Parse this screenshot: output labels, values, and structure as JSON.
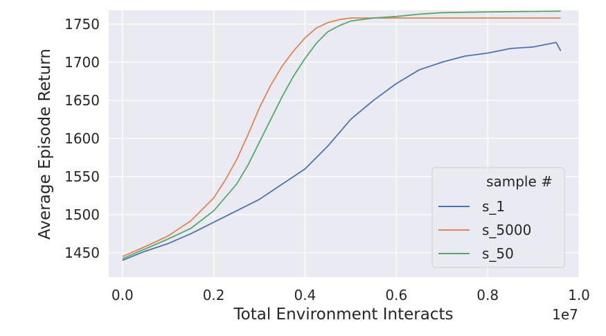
{
  "chart_data": {
    "type": "line",
    "title": "",
    "xlabel": "Total Environment Interacts",
    "ylabel": "Average Episode Return",
    "x_offset_label": "1e7",
    "xlim": [
      -0.03,
      1.0
    ],
    "ylim": [
      1418,
      1768
    ],
    "x_ticks": [
      0.0,
      0.2,
      0.4,
      0.6,
      0.8,
      1.0
    ],
    "x_tick_labels": [
      "0.0",
      "0.2",
      "0.4",
      "0.6",
      "0.8",
      "1.0"
    ],
    "y_ticks": [
      1450,
      1500,
      1550,
      1600,
      1650,
      1700,
      1750
    ],
    "y_tick_labels": [
      "1450",
      "1500",
      "1550",
      "1600",
      "1650",
      "1700",
      "1750"
    ],
    "grid": true,
    "legend": {
      "title": "sample #",
      "placement": "lower-right"
    },
    "series": [
      {
        "name": "s_1",
        "color": "#4c72b0",
        "x": [
          0.0,
          0.05,
          0.1,
          0.15,
          0.2,
          0.25,
          0.3,
          0.35,
          0.4,
          0.45,
          0.5,
          0.55,
          0.6,
          0.65,
          0.7,
          0.75,
          0.8,
          0.85,
          0.9,
          0.95,
          0.96
        ],
        "y": [
          1440,
          1452,
          1462,
          1475,
          1490,
          1505,
          1520,
          1540,
          1560,
          1590,
          1625,
          1650,
          1672,
          1690,
          1700,
          1708,
          1712,
          1718,
          1720,
          1726,
          1715
        ]
      },
      {
        "name": "s_5000",
        "color": "#dd8452",
        "x": [
          0.0,
          0.05,
          0.1,
          0.15,
          0.2,
          0.225,
          0.25,
          0.275,
          0.3,
          0.325,
          0.35,
          0.375,
          0.4,
          0.425,
          0.45,
          0.475,
          0.5,
          0.525,
          0.55,
          0.6,
          0.7,
          0.8,
          0.96
        ],
        "y": [
          1445,
          1458,
          1472,
          1492,
          1522,
          1545,
          1572,
          1605,
          1640,
          1670,
          1695,
          1715,
          1732,
          1745,
          1752,
          1756,
          1758,
          1758,
          1758,
          1758,
          1758,
          1758,
          1758
        ]
      },
      {
        "name": "s_50",
        "color": "#55a868",
        "x": [
          0.0,
          0.05,
          0.1,
          0.15,
          0.2,
          0.25,
          0.275,
          0.3,
          0.325,
          0.35,
          0.375,
          0.4,
          0.425,
          0.45,
          0.475,
          0.5,
          0.55,
          0.6,
          0.65,
          0.7,
          0.8,
          0.96
        ],
        "y": [
          1442,
          1455,
          1468,
          1482,
          1505,
          1540,
          1565,
          1595,
          1625,
          1655,
          1682,
          1705,
          1725,
          1740,
          1748,
          1754,
          1758,
          1760,
          1763,
          1765,
          1766,
          1767
        ]
      }
    ]
  }
}
